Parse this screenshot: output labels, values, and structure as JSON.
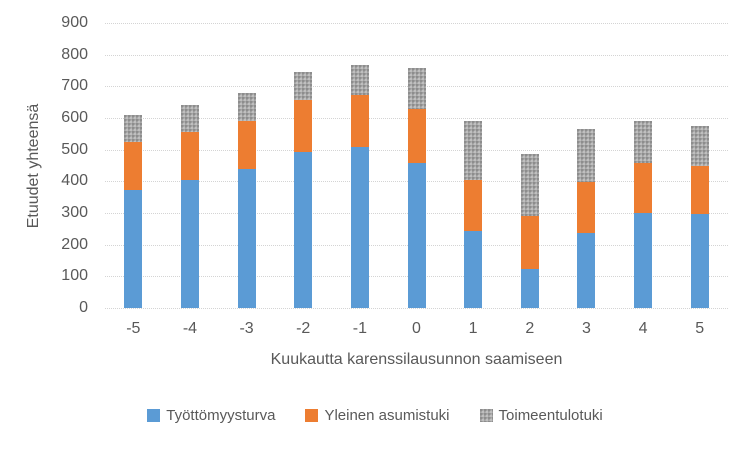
{
  "chart_data": {
    "type": "bar",
    "stacked": true,
    "title": "",
    "xlabel": "Kuukautta karenssilausunnon saamiseen",
    "ylabel": "Etuudet yhteensä",
    "ylim": [
      0,
      900
    ],
    "ytick_step": 100,
    "yticks": [
      "0",
      "100",
      "200",
      "300",
      "400",
      "500",
      "600",
      "700",
      "800",
      "900"
    ],
    "grid": "horizontal-dotted",
    "legend_position": "bottom",
    "categories": [
      "-5",
      "-4",
      "-3",
      "-2",
      "-1",
      "0",
      "1",
      "2",
      "3",
      "4",
      "5"
    ],
    "series": [
      {
        "name": "Työttömyysturva",
        "color": "#5b9bd5",
        "pattern": "solid",
        "values": [
          373,
          405,
          440,
          493,
          510,
          458,
          242,
          122,
          238,
          300,
          298
        ]
      },
      {
        "name": "Yleinen asumistuki",
        "color": "#ed7d31",
        "pattern": "solid",
        "values": [
          152,
          150,
          152,
          163,
          163,
          170,
          163,
          168,
          160,
          158,
          152
        ]
      },
      {
        "name": "Toimeentulotuki",
        "color": "#a6a6a6",
        "pattern": "stipple",
        "values": [
          85,
          86,
          86,
          90,
          95,
          129,
          185,
          197,
          167,
          132,
          125
        ]
      }
    ],
    "totals": [
      610,
      641,
      678,
      746,
      768,
      757,
      590,
      487,
      565,
      590,
      575
    ]
  },
  "style_colors": {
    "axis_text": "#595959",
    "gridline": "#d4d4d4",
    "background": "#ffffff"
  }
}
